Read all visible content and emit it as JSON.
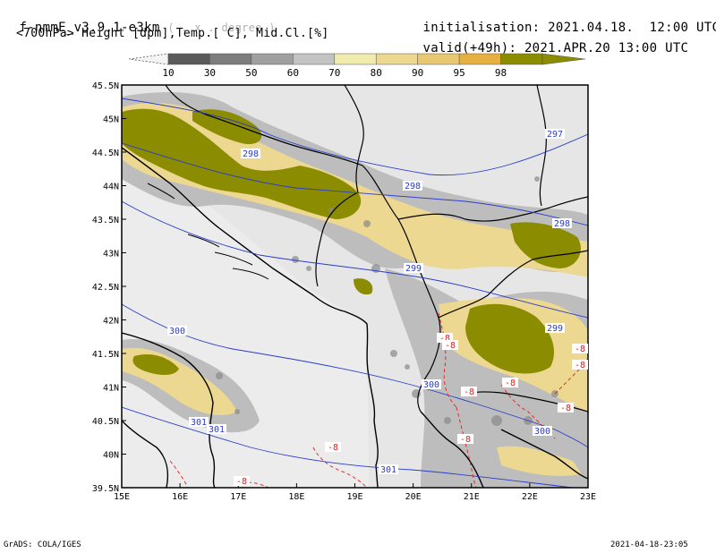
{
  "header": {
    "model": "f-nmmE_v3.9.1-e3km",
    "model_suffix": "( . x . degree )",
    "init_label": "initialisation:",
    "init_date": "2021.04.18.",
    "init_time": "12:00 UTC",
    "subtitle": "<700hPa> Height [dpm],Temp.[ C], Mid.Cl.[%]",
    "valid_label": "valid(+49h):",
    "valid_date": "2021.APR.20",
    "valid_time": "13:00 UTC"
  },
  "colorbar": {
    "levels": [
      "10",
      "30",
      "50",
      "60",
      "70",
      "80",
      "90",
      "95",
      "98"
    ],
    "colors": [
      "#5a5a5a",
      "#7d7d7d",
      "#a0a0a0",
      "#c3c3c3",
      "#f0ecb0",
      "#ecd890",
      "#e8c870",
      "#e6b040",
      "#8c8c00"
    ]
  },
  "map": {
    "lon_labels": [
      "15E",
      "16E",
      "17E",
      "18E",
      "19E",
      "20E",
      "21E",
      "22E",
      "23E"
    ],
    "lat_labels": [
      "45.5N",
      "45N",
      "44.5N",
      "44N",
      "43.5N",
      "43N",
      "42.5N",
      "42N",
      "41.5N",
      "41N",
      "40.5N",
      "40N",
      "39.5N"
    ],
    "height_labels": [
      "297",
      "298",
      "298",
      "298",
      "299",
      "299",
      "300",
      "300",
      "300",
      "301",
      "301",
      "301"
    ],
    "temp_labels": [
      "-8",
      "-8",
      "-8",
      "-8",
      "-8",
      "-8",
      "-8",
      "-8",
      "-8",
      "-8"
    ]
  },
  "footer": {
    "left": "GrADS: COLA/IGES",
    "right": "2021-04-18-23:05"
  }
}
